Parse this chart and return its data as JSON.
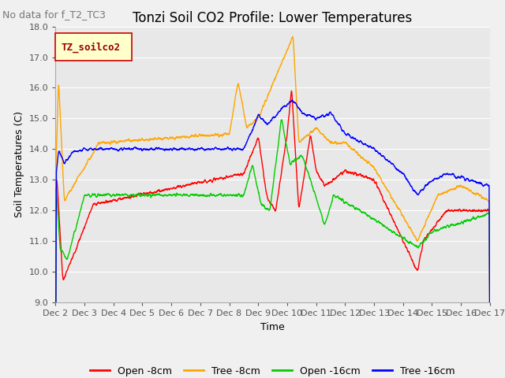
{
  "title": "Tonzi Soil CO2 Profile: Lower Temperatures",
  "subtitle": "No data for f_T2_TC3",
  "xlabel": "Time",
  "ylabel": "Soil Temperatures (C)",
  "ylim": [
    9.0,
    18.0
  ],
  "yticks": [
    9.0,
    10.0,
    11.0,
    12.0,
    13.0,
    14.0,
    15.0,
    16.0,
    17.0,
    18.0
  ],
  "xtick_labels": [
    "Dec 2",
    "Dec 3",
    "Dec 4",
    "Dec 5",
    "Dec 6",
    "Dec 7",
    "Dec 8",
    "Dec 9",
    "Dec 10",
    "Dec 11",
    "Dec 12",
    "Dec 13",
    "Dec 14",
    "Dec 15",
    "Dec 16",
    "Dec 17"
  ],
  "legend_label": "TZ_soilco2",
  "legend_entries": [
    "Open -8cm",
    "Tree -8cm",
    "Open -16cm",
    "Tree -16cm"
  ],
  "legend_colors": [
    "#ff0000",
    "#ffa500",
    "#00cc00",
    "#0000ff"
  ],
  "fig_bg_color": "#f0f0f0",
  "plot_bg_color": "#e8e8e8",
  "grid_color": "#ffffff",
  "title_fontsize": 12,
  "label_fontsize": 9,
  "tick_fontsize": 8,
  "subtitle_fontsize": 9,
  "legend_box_facecolor": "#ffffcc",
  "legend_box_edgecolor": "#cc0000",
  "legend_text_color": "#990000"
}
